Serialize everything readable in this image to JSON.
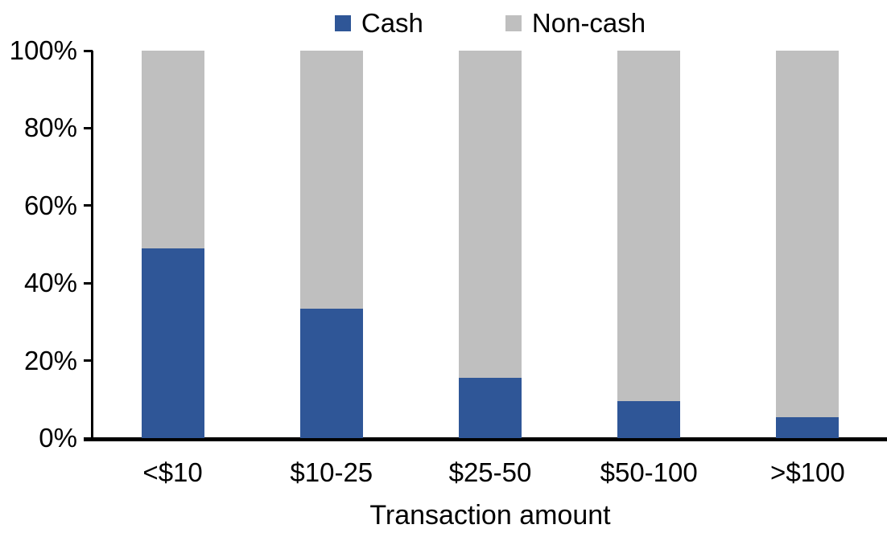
{
  "chart_data": {
    "type": "bar",
    "stacked": true,
    "title": "",
    "xlabel": "Transaction amount",
    "ylabel": "",
    "categories": [
      "<$10",
      "$10-25",
      "$25-50",
      "$50-100",
      ">$100"
    ],
    "series": [
      {
        "name": "Cash",
        "color": "#2F5697",
        "values": [
          49,
          33.5,
          15.5,
          9.5,
          5.5
        ]
      },
      {
        "name": "Non-cash",
        "color": "#BFBFBF",
        "values": [
          51,
          66.5,
          84.5,
          90.5,
          94.5
        ]
      }
    ],
    "ylim": [
      0,
      100
    ],
    "ytick_step": 20,
    "ytick_labels": [
      "0%",
      "20%",
      "40%",
      "60%",
      "80%",
      "100%"
    ],
    "grid": false,
    "legend_position": "top-center",
    "axis_color": "#000000",
    "background_color": "#FFFFFF"
  }
}
